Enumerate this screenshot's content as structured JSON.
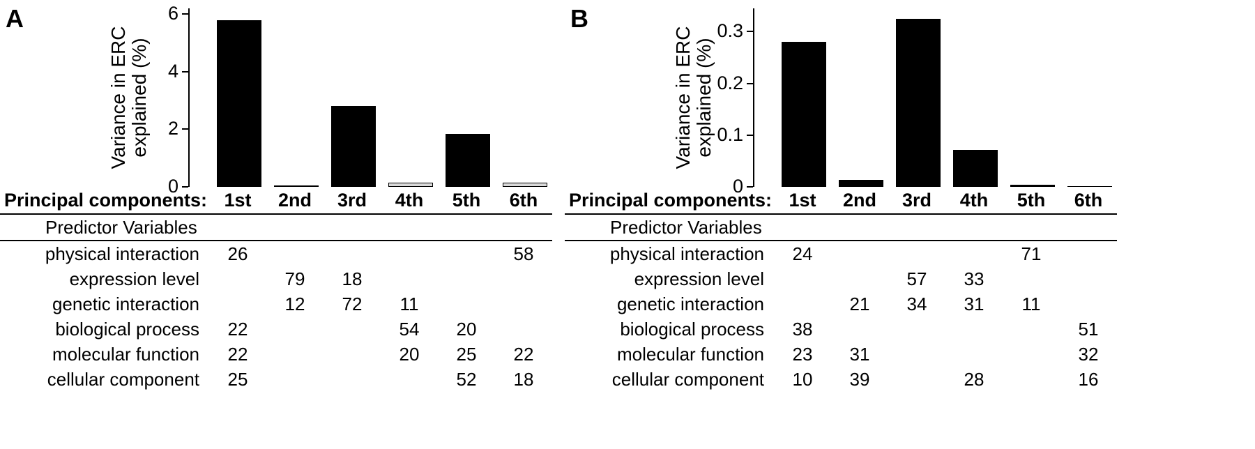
{
  "chart_data": [
    {
      "type": "bar",
      "panel": "A",
      "title": "",
      "xlabel": "Principal components",
      "ylabel": "Variance in ERC explained (%)",
      "categories": [
        "1st",
        "2nd",
        "3rd",
        "4th",
        "5th",
        "6th"
      ],
      "values": [
        5.8,
        0.05,
        2.8,
        0.15,
        1.85,
        0.15
      ],
      "ylim": [
        0,
        6.2
      ],
      "yticks": [
        0,
        2,
        4,
        6
      ],
      "ytick_labels": [
        "0",
        "2",
        "4",
        "6"
      ],
      "bar_colors": [
        "#000000",
        "#d9d9d9",
        "#000000",
        "#d9d9d9",
        "#000000",
        "#d9d9d9"
      ],
      "grid": false,
      "legend": false
    },
    {
      "type": "bar",
      "panel": "B",
      "title": "",
      "xlabel": "Principal components",
      "ylabel": "Variance in ERC explained (%)",
      "categories": [
        "1st",
        "2nd",
        "3rd",
        "4th",
        "5th",
        "6th"
      ],
      "values": [
        0.28,
        0.013,
        0.325,
        0.072,
        0.004,
        0.001
      ],
      "ylim": [
        0,
        0.345
      ],
      "yticks": [
        0,
        0.1,
        0.2,
        0.3
      ],
      "ytick_labels": [
        "0",
        "0.1",
        "0.2",
        "0.3"
      ],
      "bar_colors": [
        "#000000",
        "#000000",
        "#000000",
        "#000000",
        "#000000",
        "#000000"
      ],
      "grid": false,
      "legend": false
    }
  ],
  "panels": [
    {
      "label": "A",
      "ylabel_lines": [
        "Variance in ERC",
        "explained (%)"
      ],
      "table": {
        "header_label": "Principal components:",
        "columns": [
          "1st",
          "2nd",
          "3rd",
          "4th",
          "5th",
          "6th"
        ],
        "section_label": "Predictor Variables",
        "rows": [
          {
            "label": "physical interaction",
            "values": [
              "26",
              "",
              "",
              "",
              "",
              "58"
            ]
          },
          {
            "label": "expression level",
            "values": [
              "",
              "79",
              "18",
              "",
              "",
              ""
            ]
          },
          {
            "label": "genetic interaction",
            "values": [
              "",
              "12",
              "72",
              "11",
              "",
              ""
            ]
          },
          {
            "label": "biological process",
            "values": [
              "22",
              "",
              "",
              "54",
              "20",
              ""
            ]
          },
          {
            "label": "molecular function",
            "values": [
              "22",
              "",
              "",
              "20",
              "25",
              "22"
            ]
          },
          {
            "label": "cellular component",
            "values": [
              "25",
              "",
              "",
              "",
              "52",
              "18"
            ]
          }
        ]
      }
    },
    {
      "label": "B",
      "ylabel_lines": [
        "Variance in ERC",
        "explained (%)"
      ],
      "table": {
        "header_label": "Principal components:",
        "columns": [
          "1st",
          "2nd",
          "3rd",
          "4th",
          "5th",
          "6th"
        ],
        "section_label": "Predictor Variables",
        "rows": [
          {
            "label": "physical interaction",
            "values": [
              "24",
              "",
              "",
              "",
              "71",
              ""
            ]
          },
          {
            "label": "expression level",
            "values": [
              "",
              "",
              "57",
              "33",
              "",
              ""
            ]
          },
          {
            "label": "genetic interaction",
            "values": [
              "",
              "21",
              "34",
              "31",
              "11",
              ""
            ]
          },
          {
            "label": "biological process",
            "values": [
              "38",
              "",
              "",
              "",
              "",
              "51"
            ]
          },
          {
            "label": "molecular function",
            "values": [
              "23",
              "31",
              "",
              "",
              "",
              "32"
            ]
          },
          {
            "label": "cellular component",
            "values": [
              "10",
              "39",
              "",
              "28",
              "",
              "16"
            ]
          }
        ]
      }
    }
  ]
}
